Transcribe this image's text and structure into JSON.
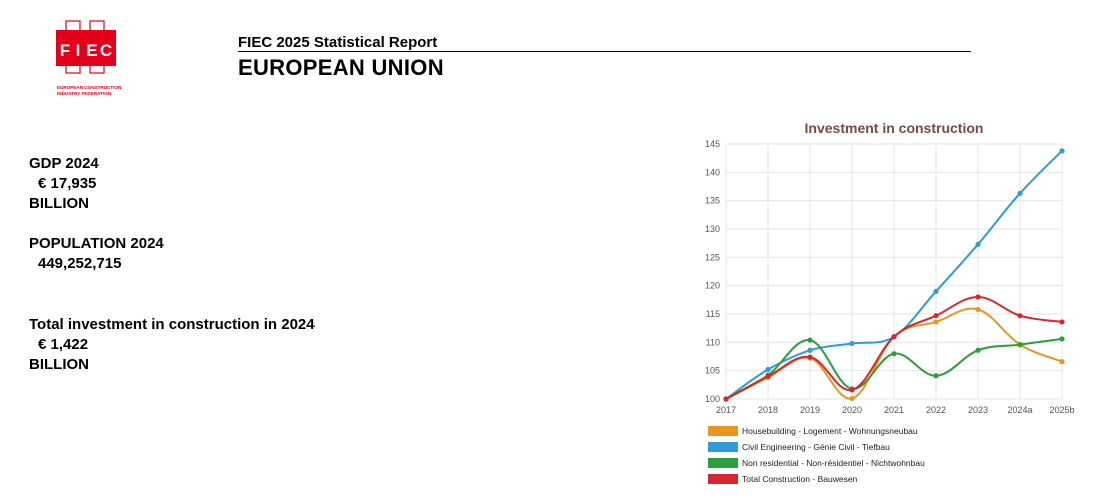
{
  "logo": {
    "letters": [
      "F",
      "I",
      "E",
      "C"
    ],
    "line1": "EUROPEAN CONSTRUCTION",
    "line2": "INDUSTRY FEDERATION",
    "color": "#e2001a"
  },
  "header": {
    "title": "FIEC 2025 Statistical Report",
    "subtitle": "EUROPEAN UNION"
  },
  "stats": {
    "gdp": {
      "label": "GDP 2024",
      "value": "€ 17,935",
      "unit": "BILLION"
    },
    "population": {
      "label": "POPULATION 2024",
      "value": "449,252,715"
    },
    "investment": {
      "label": "Total investment in construction in 2024",
      "value": "€ 1,422",
      "unit": "BILLION"
    }
  },
  "chart_data": {
    "type": "line",
    "title": "Investment in construction",
    "title_color": "#7a4a44",
    "categories": [
      "2017",
      "2018",
      "2019",
      "2020",
      "2021",
      "2022",
      "2023",
      "2024a",
      "2025b"
    ],
    "ylim": [
      100,
      145
    ],
    "yticks": [
      100,
      105,
      110,
      115,
      120,
      125,
      130,
      135,
      140,
      145
    ],
    "grid": true,
    "legend_position": "bottom",
    "series": [
      {
        "name": "Housebuilding - Logement - Wohnungsneubau",
        "color": "#e8961d",
        "values": [
          100,
          103.8,
          107.2,
          100.1,
          111.0,
          113.6,
          115.8,
          109.6,
          106.6
        ]
      },
      {
        "name": "Civil Engineering - Génie Civil - Tiefbau",
        "color": "#2f9bd8",
        "values": [
          100,
          105.2,
          108.6,
          109.8,
          111.0,
          119.0,
          127.3,
          136.3,
          143.8
        ]
      },
      {
        "name": "Non residential - Non-résidentiel - Nichtwohnbau",
        "color": "#2c9e3c",
        "values": [
          100,
          104.2,
          110.4,
          101.8,
          108.0,
          104.1,
          108.6,
          109.6,
          110.6
        ]
      },
      {
        "name": "Total Construction - Bauwesen",
        "color": "#d9262e",
        "values": [
          100,
          104.0,
          107.4,
          101.6,
          111.0,
          114.7,
          118.0,
          114.7,
          113.6
        ]
      }
    ]
  }
}
